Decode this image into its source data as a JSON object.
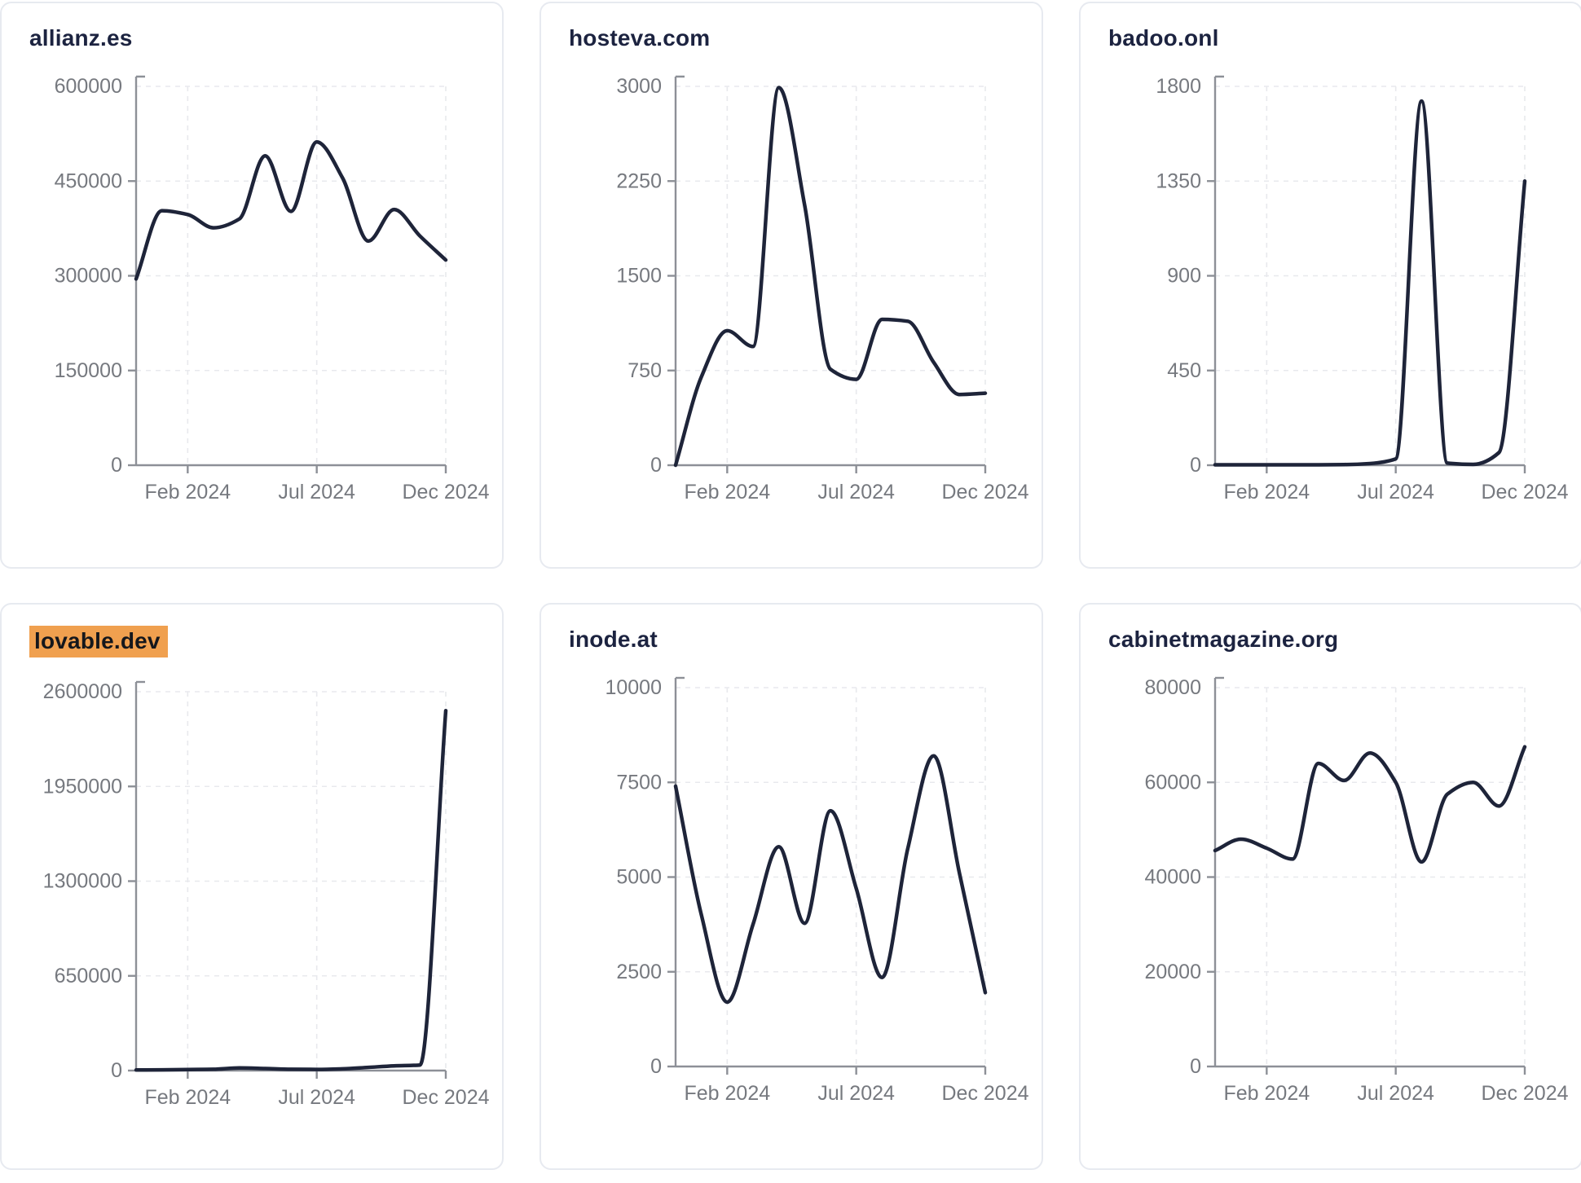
{
  "page": {
    "background": "#ffffff",
    "card_background": "#ffffff",
    "card_border_color": "#e7eaf0",
    "title_color": "#1c2340",
    "title_highlight_color": "#f0a04f",
    "line_color": "#1e2439",
    "axis_color": "#8d9097",
    "tick_label_color": "#76797f",
    "grid_color": "#e8e9ed"
  },
  "x_axis": {
    "tick_labels": [
      "Feb 2024",
      "Jul 2024",
      "Dec 2024"
    ],
    "tick_indices": [
      2,
      7,
      12
    ],
    "num_points": 13,
    "grid": true
  },
  "chart_data": [
    {
      "type": "line",
      "title": "allianz.es",
      "title_highlighted": false,
      "values": [
        295000,
        403000,
        397000,
        376000,
        390000,
        490000,
        402000,
        512000,
        455000,
        355000,
        405000,
        363000,
        325000
      ],
      "y_ticks": [
        0,
        150000,
        300000,
        450000,
        600000
      ],
      "ylim": [
        0,
        600000
      ],
      "x_tick_labels": [
        "Feb 2024",
        "Jul 2024",
        "Dec 2024"
      ]
    },
    {
      "type": "line",
      "title": "hosteva.com",
      "title_highlighted": false,
      "values": [
        0,
        700,
        1065,
        940,
        2990,
        2060,
        760,
        680,
        1155,
        1140,
        815,
        560,
        570
      ],
      "y_ticks": [
        0,
        750,
        1500,
        2250,
        3000
      ],
      "ylim": [
        0,
        3000
      ],
      "x_tick_labels": [
        "Feb 2024",
        "Jul 2024",
        "Dec 2024"
      ]
    },
    {
      "type": "line",
      "title": "badoo.onl",
      "title_highlighted": false,
      "values": [
        2,
        2,
        2,
        2,
        2,
        3,
        8,
        30,
        1730,
        10,
        4,
        60,
        1350
      ],
      "y_ticks": [
        0,
        450,
        900,
        1350,
        1800
      ],
      "ylim": [
        0,
        1800
      ],
      "x_tick_labels": [
        "Feb 2024",
        "Jul 2024",
        "Dec 2024"
      ]
    },
    {
      "type": "line",
      "title": "lovable.dev",
      "title_highlighted": true,
      "values": [
        4000,
        5000,
        7000,
        9000,
        18000,
        14000,
        9000,
        8000,
        12000,
        22000,
        32000,
        38000,
        2470000
      ],
      "y_ticks": [
        0,
        650000,
        1300000,
        1950000,
        2600000
      ],
      "ylim": [
        0,
        2600000
      ],
      "x_tick_labels": [
        "Feb 2024",
        "Jul 2024",
        "Dec 2024"
      ]
    },
    {
      "type": "line",
      "title": "inode.at",
      "title_highlighted": false,
      "values": [
        7400,
        4000,
        1700,
        3750,
        5800,
        3780,
        6750,
        4700,
        2350,
        5760,
        8200,
        5100,
        1950
      ],
      "y_ticks": [
        0,
        2500,
        5000,
        7500,
        10000
      ],
      "ylim": [
        0,
        10000
      ],
      "x_tick_labels": [
        "Feb 2024",
        "Jul 2024",
        "Dec 2024"
      ]
    },
    {
      "type": "line",
      "title": "cabinetmagazine.org",
      "title_highlighted": false,
      "values": [
        45600,
        48000,
        46100,
        43800,
        64000,
        60400,
        66200,
        60000,
        43200,
        57500,
        60000,
        55000,
        67500
      ],
      "y_ticks": [
        0,
        20000,
        40000,
        60000,
        80000
      ],
      "ylim": [
        0,
        80000
      ],
      "x_tick_labels": [
        "Feb 2024",
        "Jul 2024",
        "Dec 2024"
      ]
    }
  ]
}
